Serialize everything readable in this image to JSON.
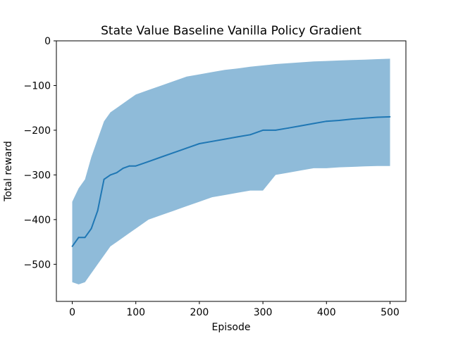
{
  "chart_data": {
    "type": "line",
    "title": "State Value Baseline Vanilla Policy Gradient",
    "xlabel": "Episode",
    "ylabel": "Total reward",
    "xlim": [
      -25,
      525
    ],
    "ylim": [
      -583,
      0
    ],
    "xticks": [
      0,
      100,
      200,
      300,
      400,
      500
    ],
    "yticks": [
      0,
      -100,
      -200,
      -300,
      -400,
      -500
    ],
    "xtick_labels": [
      "0",
      "100",
      "200",
      "300",
      "400",
      "500"
    ],
    "ytick_labels": [
      "0",
      "−100",
      "−200",
      "−300",
      "−400",
      "−500"
    ],
    "grid": false,
    "legend": "none",
    "line_color": "#1f77b4",
    "band_color": "#1f77b4",
    "band_opacity": 0.5,
    "series": [
      {
        "x": [
          0,
          10,
          20,
          30,
          40,
          50,
          60,
          70,
          80,
          90,
          100,
          120,
          140,
          160,
          180,
          200,
          220,
          240,
          260,
          280,
          300,
          320,
          340,
          360,
          380,
          400,
          420,
          440,
          460,
          480,
          500
        ],
        "mean": [
          -460,
          -440,
          -440,
          -420,
          -380,
          -310,
          -300,
          -295,
          -285,
          -280,
          -280,
          -270,
          -260,
          -250,
          -240,
          -230,
          -225,
          -220,
          -215,
          -210,
          -200,
          -200,
          -195,
          -190,
          -185,
          -180,
          -178,
          -175,
          -173,
          -171,
          -170
        ],
        "upper": [
          -360,
          -330,
          -310,
          -260,
          -220,
          -180,
          -160,
          -150,
          -140,
          -130,
          -120,
          -110,
          -100,
          -90,
          -80,
          -75,
          -70,
          -65,
          -62,
          -58,
          -55,
          -52,
          -50,
          -48,
          -46,
          -45,
          -44,
          -43,
          -42,
          -41,
          -40
        ],
        "lower": [
          -540,
          -545,
          -540,
          -520,
          -500,
          -480,
          -460,
          -450,
          -440,
          -430,
          -420,
          -400,
          -390,
          -380,
          -370,
          -360,
          -350,
          -345,
          -340,
          -335,
          -335,
          -300,
          -295,
          -290,
          -285,
          -285,
          -283,
          -282,
          -281,
          -280,
          -280
        ]
      }
    ]
  }
}
